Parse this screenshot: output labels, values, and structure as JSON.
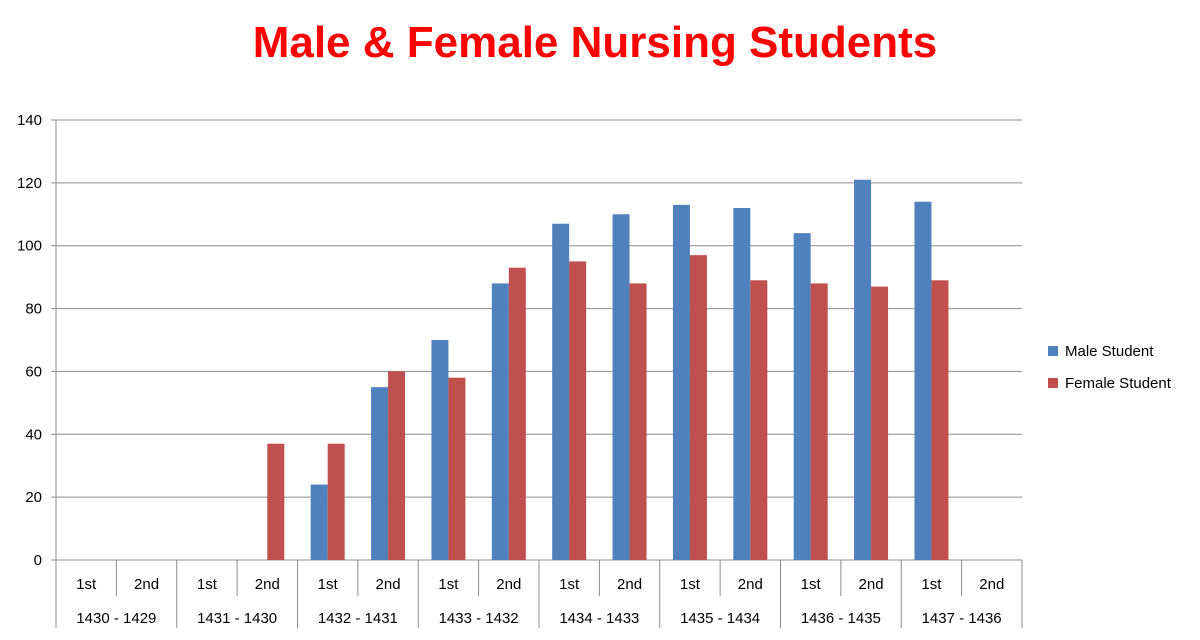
{
  "chart_data": {
    "type": "bar",
    "title": "Male & Female Nursing Students",
    "xlabel": "",
    "ylabel": "",
    "ylim": [
      0,
      140
    ],
    "yticks": [
      0,
      20,
      40,
      60,
      80,
      100,
      120,
      140
    ],
    "grid": true,
    "legend_position": "right",
    "groups": [
      "1430 - 1429",
      "1431 - 1430",
      "1432 - 1431",
      "1433 - 1432",
      "1434 - 1433",
      "1435 - 1434",
      "1436 - 1435",
      "1437 - 1436"
    ],
    "semesters": [
      "1st",
      "2nd"
    ],
    "categories": [
      "1430 - 1429 1st",
      "1430 - 1429 2nd",
      "1431 - 1430 1st",
      "1431 - 1430 2nd",
      "1432 - 1431 1st",
      "1432 - 1431 2nd",
      "1433 - 1432 1st",
      "1433 - 1432 2nd",
      "1434 - 1433 1st",
      "1434 - 1433 2nd",
      "1435 - 1434 1st",
      "1435 - 1434 2nd",
      "1436 - 1435 1st",
      "1436 - 1435 2nd",
      "1437 - 1436 1st",
      "1437 - 1436 2nd"
    ],
    "series": [
      {
        "name": "Male Student",
        "color": "#4f81bd",
        "values": [
          0,
          0,
          0,
          0,
          24,
          55,
          70,
          88,
          107,
          110,
          113,
          112,
          104,
          121,
          114,
          0
        ]
      },
      {
        "name": "Female Student",
        "color": "#c0504d",
        "values": [
          0,
          0,
          0,
          37,
          37,
          60,
          58,
          93,
          95,
          88,
          97,
          89,
          88,
          87,
          89,
          0
        ]
      }
    ]
  }
}
